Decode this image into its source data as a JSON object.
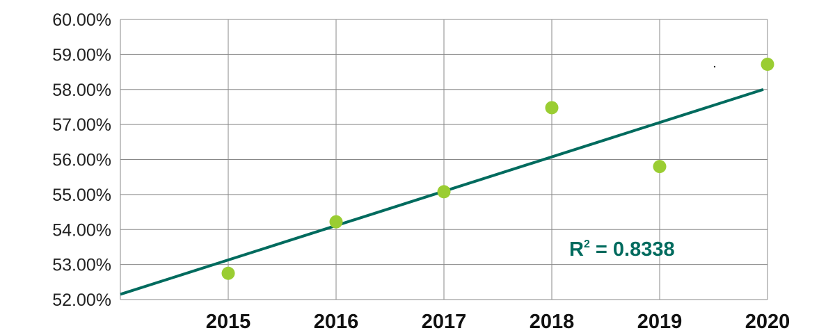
{
  "chart_data": {
    "type": "scatter",
    "title": "",
    "xlabel": "",
    "ylabel": "",
    "x": [
      2015,
      2016,
      2017,
      2018,
      2019,
      2020
    ],
    "y": [
      52.75,
      54.22,
      55.08,
      57.48,
      55.8,
      58.72
    ],
    "x_ticks": [
      "2015",
      "2016",
      "2017",
      "2018",
      "2019",
      "2020"
    ],
    "y_ticks": [
      "52.00%",
      "53.00%",
      "54.00%",
      "55.00%",
      "56.00%",
      "57.00%",
      "58.00%",
      "59.00%",
      "60.00%"
    ],
    "xlim": [
      2014,
      2020
    ],
    "ylim": [
      52,
      60
    ],
    "grid": true,
    "legend": "none",
    "trendline": {
      "type": "linear",
      "points": [
        [
          2014,
          52.15
        ],
        [
          2020,
          58.0
        ]
      ],
      "label_prefix": "R",
      "label_sup": "2",
      "label_value": " = 0.8338",
      "color": "#006b5e"
    },
    "marker_color": "#9acd32",
    "grid_color": "#888888"
  }
}
